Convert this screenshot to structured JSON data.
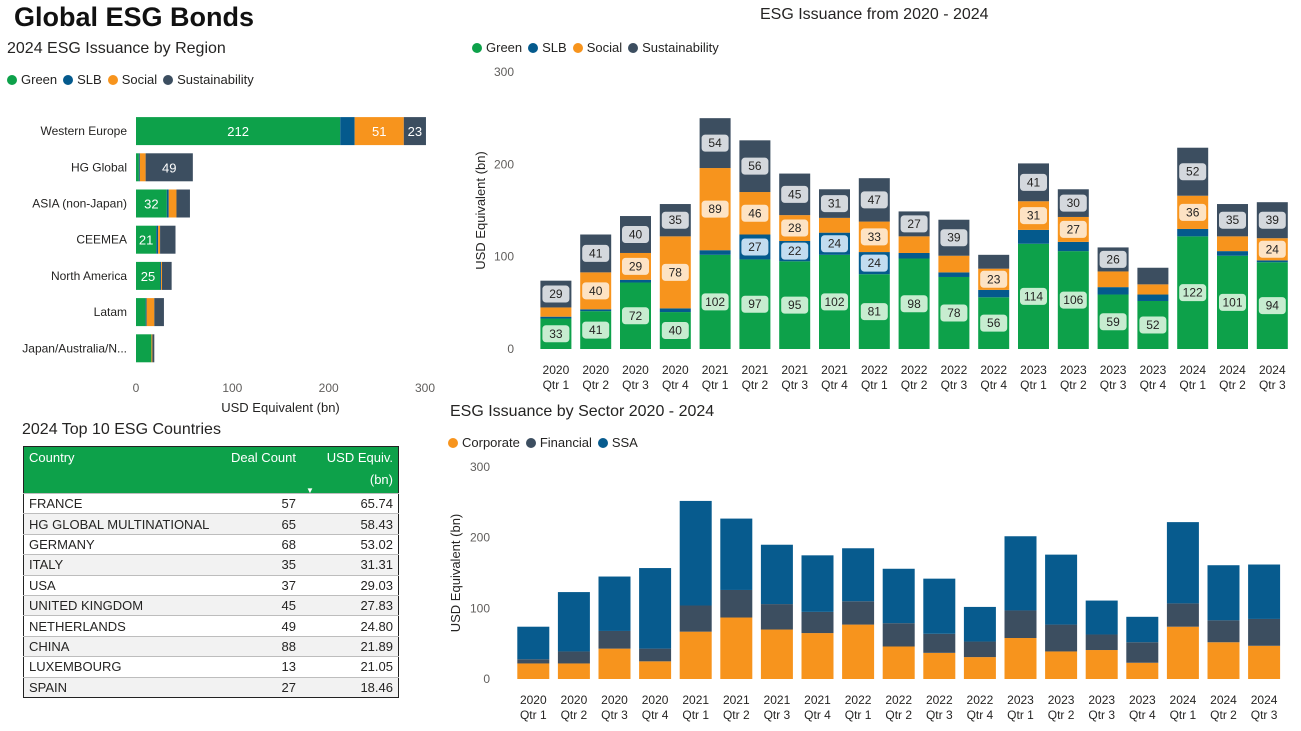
{
  "page_title": "Global ESG Bonds",
  "colors": {
    "green": "#0da14a",
    "slb": "#045a8d",
    "social": "#f7941d",
    "sustainability": "#3c4e60",
    "corporate": "#f7941d",
    "financial": "#3c4e60",
    "ssa": "#075b8e"
  },
  "chart_data": [
    {
      "type": "bar",
      "orientation": "horizontal",
      "stacked": true,
      "title": "2024 ESG Issuance by Region",
      "xlabel": "USD Equivalent (bn)",
      "ylabel": "",
      "xlim": [
        0,
        300
      ],
      "ticks": [
        0,
        100,
        200,
        300
      ],
      "legend_position": "top-left",
      "categories": [
        "Western Europe",
        "HG Global",
        "ASIA (non-Japan)",
        "CEEMEA",
        "North America",
        "Latam",
        "Japan/Australia/N..."
      ],
      "series": [
        {
          "name": "Green",
          "values": [
            212,
            3,
            32,
            21,
            25,
            10,
            16
          ],
          "labels": [
            "212",
            "",
            "32",
            "21",
            "25",
            "",
            ""
          ]
        },
        {
          "name": "SLB",
          "values": [
            15,
            1,
            2,
            2,
            1,
            1,
            0
          ],
          "labels": [
            "",
            "",
            "",
            "",
            "",
            "",
            ""
          ]
        },
        {
          "name": "Social",
          "values": [
            51,
            6,
            8,
            2,
            1,
            8,
            1
          ],
          "labels": [
            "51",
            "",
            "",
            "",
            "",
            "",
            ""
          ]
        },
        {
          "name": "Sustainability",
          "values": [
            23,
            49,
            14,
            16,
            10,
            10,
            2
          ],
          "labels": [
            "23",
            "49",
            "",
            "",
            "",
            "",
            ""
          ]
        }
      ]
    },
    {
      "type": "bar",
      "stacked": true,
      "title": "ESG Issuance from 2020 - 2024",
      "xlabel": "",
      "ylabel": "USD Equivalent (bn)",
      "ylim": [
        0,
        300
      ],
      "ticks": [
        0,
        100,
        200,
        300
      ],
      "legend_position": "top-left",
      "categories": [
        [
          "2020",
          "Qtr 1"
        ],
        [
          "2020",
          "Qtr 2"
        ],
        [
          "2020",
          "Qtr 3"
        ],
        [
          "2020",
          "Qtr 4"
        ],
        [
          "2021",
          "Qtr 1"
        ],
        [
          "2021",
          "Qtr 2"
        ],
        [
          "2021",
          "Qtr 3"
        ],
        [
          "2021",
          "Qtr 4"
        ],
        [
          "2022",
          "Qtr 1"
        ],
        [
          "2022",
          "Qtr 2"
        ],
        [
          "2022",
          "Qtr 3"
        ],
        [
          "2022",
          "Qtr 4"
        ],
        [
          "2023",
          "Qtr 1"
        ],
        [
          "2023",
          "Qtr 2"
        ],
        [
          "2023",
          "Qtr 3"
        ],
        [
          "2023",
          "Qtr 4"
        ],
        [
          "2024",
          "Qtr 1"
        ],
        [
          "2024",
          "Qtr 2"
        ],
        [
          "2024",
          "Qtr 3"
        ]
      ],
      "series": [
        {
          "name": "Green",
          "values": [
            33,
            41,
            72,
            40,
            102,
            97,
            95,
            102,
            81,
            98,
            78,
            56,
            114,
            106,
            59,
            52,
            122,
            101,
            94
          ],
          "show_labels": true
        },
        {
          "name": "SLB",
          "values": [
            2,
            2,
            3,
            4,
            5,
            27,
            22,
            24,
            24,
            6,
            5,
            8,
            15,
            10,
            8,
            7,
            8,
            5,
            2
          ],
          "labels": [
            "",
            "",
            "",
            "",
            "",
            "27",
            "22",
            "24",
            "24",
            "",
            "",
            "",
            "",
            "",
            "",
            "",
            "",
            "",
            ""
          ]
        },
        {
          "name": "Social",
          "values": [
            10,
            40,
            29,
            78,
            89,
            46,
            28,
            16,
            33,
            18,
            18,
            23,
            31,
            27,
            17,
            11,
            36,
            16,
            24
          ],
          "labels": [
            "",
            "40",
            "29",
            "78",
            "89",
            "46",
            "28",
            "",
            "33",
            "",
            "",
            "23",
            "31",
            "27",
            "",
            "",
            "36",
            "",
            "24"
          ]
        },
        {
          "name": "Sustainability",
          "values": [
            29,
            41,
            40,
            35,
            54,
            56,
            45,
            31,
            47,
            27,
            39,
            15,
            41,
            30,
            26,
            18,
            52,
            35,
            39
          ],
          "labels": [
            "29",
            "41",
            "40",
            "35",
            "54",
            "56",
            "45",
            "31",
            "47",
            "27",
            "39",
            "",
            "41",
            "30",
            "26",
            "",
            "52",
            "35",
            "39"
          ]
        }
      ]
    },
    {
      "type": "bar",
      "stacked": true,
      "title": "ESG Issuance by Sector 2020 - 2024",
      "xlabel": "",
      "ylabel": "USD Equivalent (bn)",
      "ylim": [
        0,
        300
      ],
      "ticks": [
        0,
        100,
        200,
        300
      ],
      "legend_position": "top-left",
      "categories": [
        [
          "2020",
          "Qtr 1"
        ],
        [
          "2020",
          "Qtr 2"
        ],
        [
          "2020",
          "Qtr 3"
        ],
        [
          "2020",
          "Qtr 4"
        ],
        [
          "2021",
          "Qtr 1"
        ],
        [
          "2021",
          "Qtr 2"
        ],
        [
          "2021",
          "Qtr 3"
        ],
        [
          "2021",
          "Qtr 4"
        ],
        [
          "2022",
          "Qtr 1"
        ],
        [
          "2022",
          "Qtr 2"
        ],
        [
          "2022",
          "Qtr 3"
        ],
        [
          "2022",
          "Qtr 4"
        ],
        [
          "2023",
          "Qtr 1"
        ],
        [
          "2023",
          "Qtr 2"
        ],
        [
          "2023",
          "Qtr 3"
        ],
        [
          "2023",
          "Qtr 4"
        ],
        [
          "2024",
          "Qtr 1"
        ],
        [
          "2024",
          "Qtr 2"
        ],
        [
          "2024",
          "Qtr 3"
        ]
      ],
      "series": [
        {
          "name": "Corporate",
          "values": [
            22,
            22,
            43,
            25,
            67,
            87,
            70,
            65,
            77,
            46,
            37,
            31,
            58,
            39,
            41,
            23,
            74,
            52,
            47
          ]
        },
        {
          "name": "Financial",
          "values": [
            6,
            17,
            25,
            18,
            37,
            39,
            36,
            30,
            33,
            33,
            27,
            22,
            39,
            38,
            22,
            29,
            33,
            31,
            38
          ]
        },
        {
          "name": "SSA",
          "values": [
            46,
            84,
            77,
            114,
            148,
            101,
            84,
            80,
            75,
            77,
            78,
            49,
            105,
            99,
            48,
            36,
            115,
            78,
            77
          ]
        }
      ]
    }
  ],
  "countries_table": {
    "title": "2024 Top 10 ESG Countries",
    "columns": [
      "Country",
      "Deal Count",
      "USD Equiv. (bn)"
    ],
    "sort_indicator": "▼",
    "rows": [
      [
        "FRANCE",
        "57",
        "65.74"
      ],
      [
        "HG GLOBAL MULTINATIONAL",
        "65",
        "58.43"
      ],
      [
        "GERMANY",
        "68",
        "53.02"
      ],
      [
        "ITALY",
        "35",
        "31.31"
      ],
      [
        "USA",
        "37",
        "29.03"
      ],
      [
        "UNITED KINGDOM",
        "45",
        "27.83"
      ],
      [
        "NETHERLANDS",
        "49",
        "24.80"
      ],
      [
        "CHINA",
        "88",
        "21.89"
      ],
      [
        "LUXEMBOURG",
        "13",
        "21.05"
      ],
      [
        "SPAIN",
        "27",
        "18.46"
      ]
    ]
  }
}
